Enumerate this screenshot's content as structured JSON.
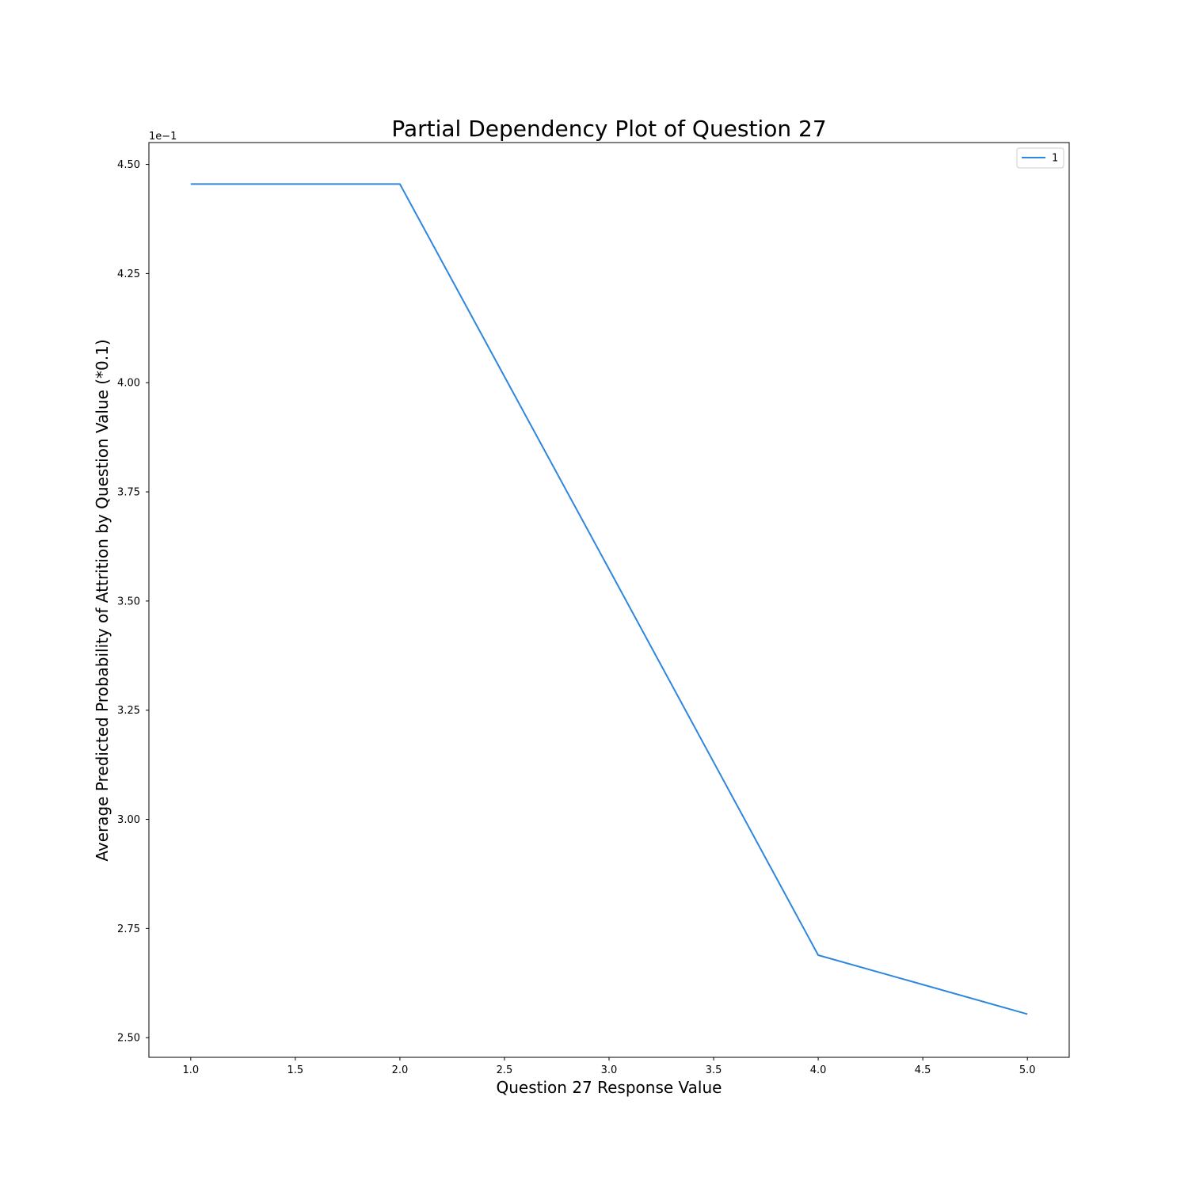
{
  "chart_data": {
    "type": "line",
    "title": "Partial Dependency Plot of Question 27",
    "xlabel": "Question 27 Response Value",
    "ylabel": "Average Predicted Probability of Attrition by Question Value (*0.1)",
    "y_offset_label": "1e−1",
    "xlim": [
      0.8,
      5.2
    ],
    "ylim": [
      2.455,
      4.55
    ],
    "x_ticks": [
      1.0,
      1.5,
      2.0,
      2.5,
      3.0,
      3.5,
      4.0,
      4.5,
      5.0
    ],
    "x_tick_labels": [
      "1.0",
      "1.5",
      "2.0",
      "2.5",
      "3.0",
      "3.5",
      "4.0",
      "4.5",
      "5.0"
    ],
    "y_ticks": [
      2.5,
      2.75,
      3.0,
      3.25,
      3.5,
      3.75,
      4.0,
      4.25,
      4.5
    ],
    "y_tick_labels": [
      "2.50",
      "2.75",
      "3.00",
      "3.25",
      "3.50",
      "3.75",
      "4.00",
      "4.25",
      "4.50"
    ],
    "grid": false,
    "legend_position": "upper-right",
    "series": [
      {
        "name": "1",
        "color": "#2e86de",
        "x": [
          1,
          2,
          3,
          4,
          5
        ],
        "y": [
          4.455,
          4.455,
          3.573,
          2.689,
          2.554
        ]
      }
    ]
  }
}
